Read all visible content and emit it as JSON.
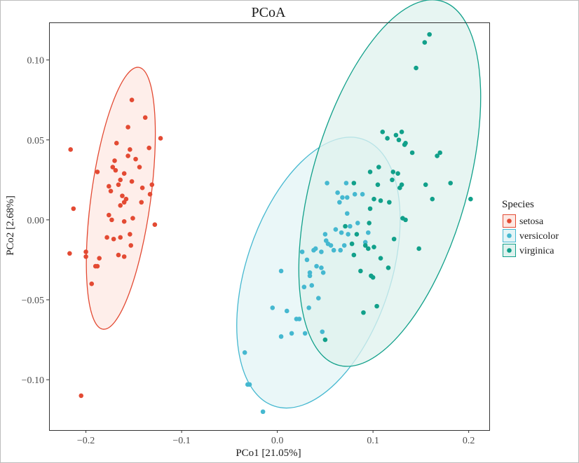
{
  "chart_data": {
    "type": "scatter",
    "title": "PCoA",
    "xlabel": "PCo1 [21.05%]",
    "ylabel": "PCo2 [2.68%]",
    "xlim": [
      -0.2385,
      0.2215
    ],
    "ylim": [
      -0.1315,
      0.1235
    ],
    "x_ticks": [
      -0.2,
      -0.1,
      0.0,
      0.1,
      0.2
    ],
    "x_tick_labels": [
      "−0.2",
      "−0.1",
      "0.0",
      "0.1",
      "0.2"
    ],
    "y_ticks": [
      -0.1,
      -0.05,
      0.0,
      0.05,
      0.1
    ],
    "y_tick_labels": [
      "−0.10",
      "−0.05",
      "0.00",
      "0.05",
      "0.10"
    ],
    "grid": false,
    "legend": {
      "title": "Species",
      "placement": "right"
    },
    "series": [
      {
        "name": "setosa",
        "color": "#e34a33",
        "points": [
          [
            -0.216,
            0.044
          ],
          [
            -0.213,
            0.007
          ],
          [
            -0.217,
            -0.021
          ],
          [
            -0.2,
            -0.02
          ],
          [
            -0.2,
            -0.023
          ],
          [
            -0.205,
            -0.11
          ],
          [
            -0.194,
            -0.04
          ],
          [
            -0.188,
            -0.029
          ],
          [
            -0.19,
            -0.029
          ],
          [
            -0.188,
            0.03
          ],
          [
            -0.186,
            -0.024
          ],
          [
            -0.178,
            -0.011
          ],
          [
            -0.176,
            0.003
          ],
          [
            -0.176,
            0.021
          ],
          [
            -0.173,
            0.0
          ],
          [
            -0.172,
            0.033
          ],
          [
            -0.168,
            0.048
          ],
          [
            -0.17,
            0.037
          ],
          [
            -0.164,
            0.025
          ],
          [
            -0.166,
            0.022
          ],
          [
            -0.16,
            0.029
          ],
          [
            -0.162,
            0.015
          ],
          [
            -0.164,
            -0.011
          ],
          [
            -0.166,
            -0.022
          ],
          [
            -0.171,
            -0.012
          ],
          [
            -0.164,
            0.009
          ],
          [
            -0.16,
            -0.001
          ],
          [
            -0.158,
            0.013
          ],
          [
            -0.156,
            0.04
          ],
          [
            -0.156,
            0.058
          ],
          [
            -0.154,
            0.044
          ],
          [
            -0.152,
            0.024
          ],
          [
            -0.151,
            0.001
          ],
          [
            -0.154,
            -0.009
          ],
          [
            -0.153,
            -0.016
          ],
          [
            -0.152,
            0.075
          ],
          [
            -0.148,
            0.038
          ],
          [
            -0.144,
            0.033
          ],
          [
            -0.141,
            0.02
          ],
          [
            -0.142,
            0.011
          ],
          [
            -0.138,
            0.064
          ],
          [
            -0.134,
            0.045
          ],
          [
            -0.131,
            0.022
          ],
          [
            -0.133,
            0.016
          ],
          [
            -0.128,
            -0.003
          ],
          [
            -0.122,
            0.051
          ],
          [
            -0.16,
            0.011
          ],
          [
            -0.169,
            0.031
          ],
          [
            -0.16,
            -0.023
          ],
          [
            -0.174,
            0.018
          ]
        ]
      },
      {
        "name": "versicolor",
        "color": "#45b8d0",
        "points": [
          [
            -0.034,
            -0.083
          ],
          [
            -0.031,
            -0.103
          ],
          [
            -0.029,
            -0.103
          ],
          [
            -0.015,
            -0.12
          ],
          [
            -0.005,
            -0.055
          ],
          [
            0.004,
            -0.032
          ],
          [
            0.004,
            -0.073
          ],
          [
            0.01,
            -0.057
          ],
          [
            0.015,
            -0.071
          ],
          [
            0.02,
            -0.062
          ],
          [
            0.023,
            -0.062
          ],
          [
            0.026,
            -0.02
          ],
          [
            0.028,
            -0.042
          ],
          [
            0.029,
            -0.071
          ],
          [
            0.034,
            -0.035
          ],
          [
            0.033,
            -0.055
          ],
          [
            0.034,
            -0.033
          ],
          [
            0.036,
            -0.041
          ],
          [
            0.031,
            -0.025
          ],
          [
            0.038,
            -0.019
          ],
          [
            0.04,
            -0.018
          ],
          [
            0.041,
            -0.029
          ],
          [
            0.043,
            -0.049
          ],
          [
            0.046,
            -0.02
          ],
          [
            0.046,
            -0.03
          ],
          [
            0.047,
            -0.07
          ],
          [
            0.048,
            -0.033
          ],
          [
            0.05,
            -0.009
          ],
          [
            0.051,
            -0.013
          ],
          [
            0.052,
            0.023
          ],
          [
            0.053,
            -0.015
          ],
          [
            0.056,
            -0.016
          ],
          [
            0.059,
            -0.019
          ],
          [
            0.061,
            -0.006
          ],
          [
            0.063,
            0.017
          ],
          [
            0.065,
            0.011
          ],
          [
            0.066,
            -0.019
          ],
          [
            0.067,
            -0.008
          ],
          [
            0.068,
            0.014
          ],
          [
            0.07,
            -0.016
          ],
          [
            0.072,
            0.023
          ],
          [
            0.073,
            0.004
          ],
          [
            0.073,
            0.014
          ],
          [
            0.074,
            -0.009
          ],
          [
            0.076,
            -0.004
          ],
          [
            0.081,
            0.016
          ],
          [
            0.084,
            -0.002
          ],
          [
            0.089,
            0.016
          ],
          [
            0.092,
            -0.014
          ],
          [
            0.095,
            -0.008
          ]
        ]
      },
      {
        "name": "virginica",
        "color": "#11a08a",
        "points": [
          [
            0.05,
            -0.075
          ],
          [
            0.071,
            -0.004
          ],
          [
            0.078,
            -0.015
          ],
          [
            0.08,
            -0.022
          ],
          [
            0.08,
            0.023
          ],
          [
            0.083,
            -0.009
          ],
          [
            0.087,
            -0.032
          ],
          [
            0.09,
            -0.058
          ],
          [
            0.092,
            -0.016
          ],
          [
            0.095,
            -0.018
          ],
          [
            0.096,
            -0.002
          ],
          [
            0.097,
            0.007
          ],
          [
            0.097,
            0.03
          ],
          [
            0.098,
            -0.035
          ],
          [
            0.1,
            -0.036
          ],
          [
            0.101,
            0.013
          ],
          [
            0.101,
            -0.017
          ],
          [
            0.104,
            -0.054
          ],
          [
            0.105,
            0.022
          ],
          [
            0.106,
            0.033
          ],
          [
            0.108,
            -0.024
          ],
          [
            0.108,
            0.012
          ],
          [
            0.11,
            0.055
          ],
          [
            0.115,
            0.051
          ],
          [
            0.116,
            -0.03
          ],
          [
            0.117,
            0.011
          ],
          [
            0.12,
            0.025
          ],
          [
            0.121,
            0.03
          ],
          [
            0.122,
            -0.012
          ],
          [
            0.124,
            0.053
          ],
          [
            0.126,
            0.029
          ],
          [
            0.127,
            0.05
          ],
          [
            0.128,
            0.02
          ],
          [
            0.13,
            0.022
          ],
          [
            0.13,
            0.055
          ],
          [
            0.131,
            0.001
          ],
          [
            0.133,
            0.047
          ],
          [
            0.134,
            0.0
          ],
          [
            0.134,
            0.048
          ],
          [
            0.141,
            0.042
          ],
          [
            0.145,
            0.095
          ],
          [
            0.148,
            -0.018
          ],
          [
            0.154,
            0.111
          ],
          [
            0.155,
            0.022
          ],
          [
            0.159,
            0.116
          ],
          [
            0.162,
            0.013
          ],
          [
            0.167,
            0.04
          ],
          [
            0.17,
            0.042
          ],
          [
            0.181,
            0.023
          ],
          [
            0.202,
            0.013
          ]
        ]
      }
    ],
    "ellipses": [
      {
        "series": "setosa",
        "cx": -0.1635,
        "cy": 0.0135,
        "rx": 0.0298,
        "ry": 0.084,
        "slope_major": 4.38,
        "fill": "#fde8e3",
        "stroke": "#e34a33"
      },
      {
        "series": "versicolor",
        "cx": 0.043,
        "cy": -0.033,
        "rx": 0.0635,
        "ry": 0.0954,
        "slope_major": 1.81,
        "fill": "#e3f4f6",
        "stroke": "#45b8d0"
      },
      {
        "series": "virginica",
        "cx": 0.1175,
        "cy": 0.023,
        "rx": 0.0705,
        "ry": 0.126,
        "slope_major": 2.11,
        "fill": "#dff2ee",
        "stroke": "#11a08a"
      }
    ]
  }
}
